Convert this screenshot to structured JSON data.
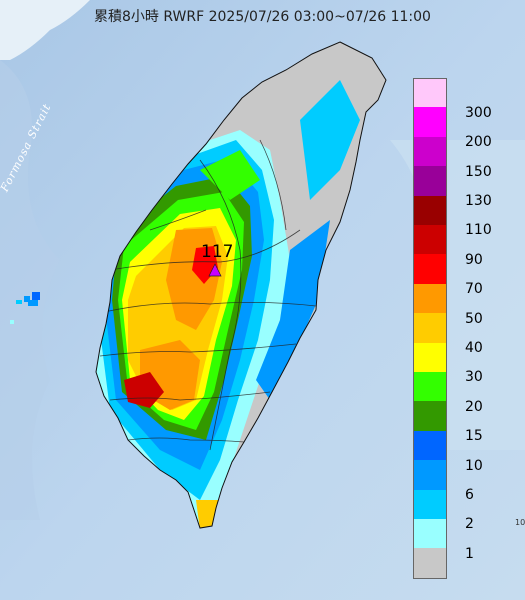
{
  "title": "累積8小時 RWRF 2025/07/26 03:00~07/26 11:00",
  "strait_label": "Formosa Strait",
  "max_marker": {
    "value": "117"
  },
  "edge_text": "10",
  "legend": [
    {
      "label": "300",
      "color": "#ffc8fa"
    },
    {
      "label": "200",
      "color": "#ff00ff"
    },
    {
      "label": "150",
      "color": "#cc00cc"
    },
    {
      "label": "130",
      "color": "#990099"
    },
    {
      "label": "110",
      "color": "#990000"
    },
    {
      "label": "90",
      "color": "#cc0000"
    },
    {
      "label": "70",
      "color": "#ff0000"
    },
    {
      "label": "50",
      "color": "#ff9900"
    },
    {
      "label": "40",
      "color": "#ffcc00"
    },
    {
      "label": "30",
      "color": "#ffff00"
    },
    {
      "label": "20",
      "color": "#33ff00"
    },
    {
      "label": "15",
      "color": "#339900"
    },
    {
      "label": "10",
      "color": "#0066ff"
    },
    {
      "label": "6",
      "color": "#0099ff"
    },
    {
      "label": "2",
      "color": "#00ccff"
    },
    {
      "label": "1",
      "color": "#99ffff"
    },
    {
      "label": "",
      "color": "#c8c8c8"
    }
  ],
  "colors": {
    "sea": "#c2d8ec",
    "land_base": "#c8c8c8",
    "marker": "#c800ff"
  }
}
